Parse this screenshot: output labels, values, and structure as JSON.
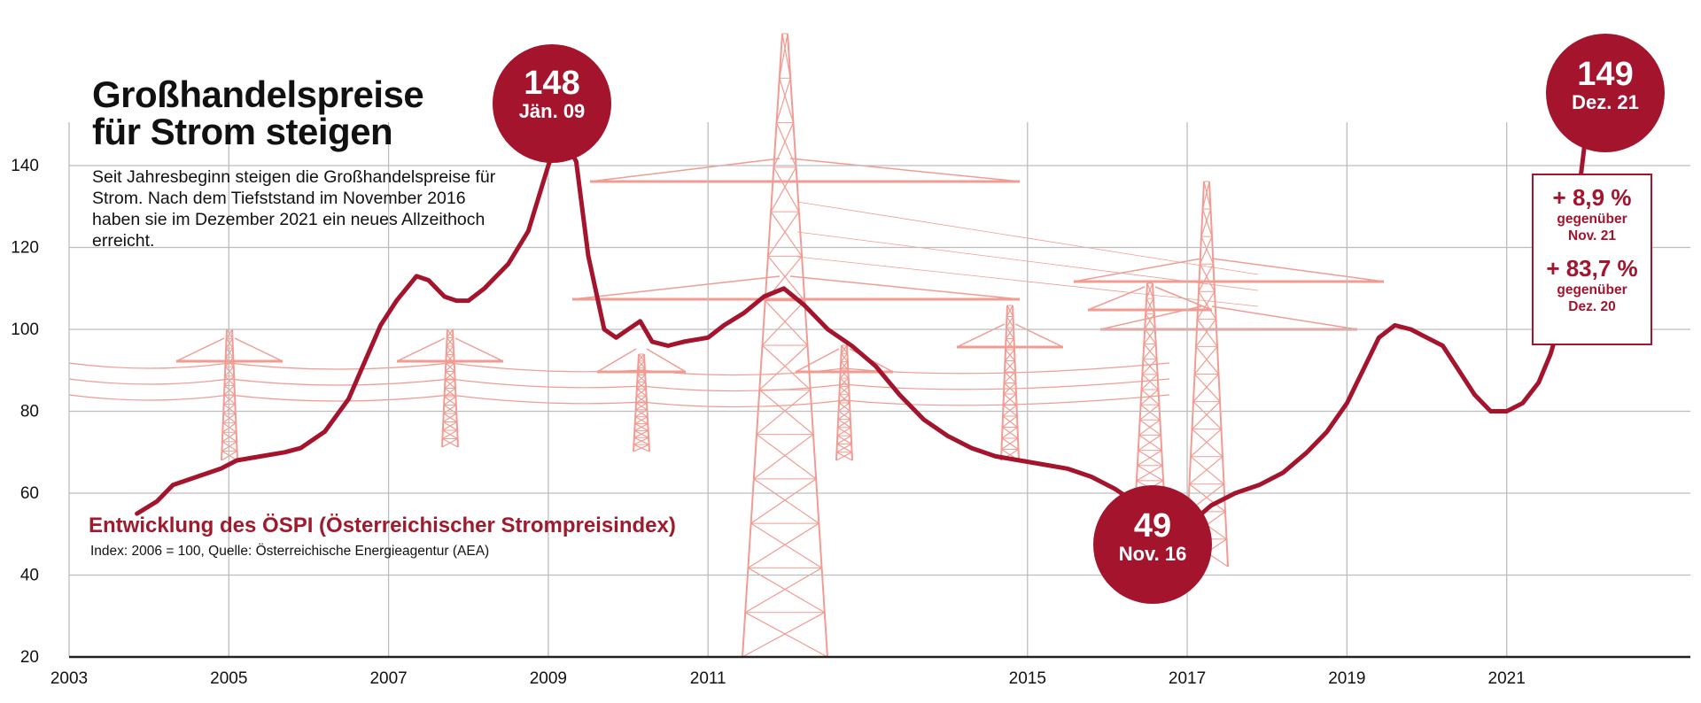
{
  "headline": "Großhandelspreise\nfür Strom steigen",
  "intro": "Seit Jahresbeginn steigen die Großhandelspreise für Strom. Nach dem Tiefststand im November 2016 haben sie im Dezember 2021 ein neues Allzeithoch erreicht.",
  "subtitle": "Entwicklung des ÖSPI (Österreichischer Strompreisindex)",
  "source": "Index: 2006 = 100, Quelle: Österreichische Energieagentur (AEA)",
  "annotations": {
    "high_2009": {
      "value": "148",
      "label": "Jän. 09"
    },
    "low_2016": {
      "value": "49",
      "label": "Nov. 16"
    },
    "high_2021": {
      "value": "149",
      "label": "Dez. 21"
    }
  },
  "changes": [
    {
      "pct": "+ 8,9 %",
      "line1": "gegenüber",
      "line2": "Nov. 21"
    },
    {
      "pct": "+ 83,7 %",
      "line1": "gegenüber",
      "line2": "Dez. 20"
    }
  ],
  "colors": {
    "line": "#a4142d",
    "pylon": "#f08a80",
    "grid": "#bdbdbd"
  },
  "chart_data": {
    "type": "line",
    "xlim": [
      2003,
      2023.3
    ],
    "ylim": [
      20,
      148
    ],
    "x_ticks": [
      "2003",
      "2005",
      "2007",
      "2009",
      "2011",
      "2015",
      "2017",
      "2019",
      "2021"
    ],
    "y_ticks": [
      "20",
      "40",
      "60",
      "80",
      "100",
      "120",
      "140"
    ],
    "grid": true,
    "series": [
      {
        "x": [
          2003.85,
          2004.1,
          2004.3,
          2004.6,
          2004.9,
          2005.1,
          2005.4,
          2005.7,
          2005.9,
          2006.2,
          2006.5,
          2006.7,
          2006.9,
          2007.1,
          2007.35,
          2007.5,
          2007.7,
          2007.85,
          2008.0,
          2008.2,
          2008.5,
          2008.75,
          2009.0,
          2009.15,
          2009.35,
          2009.5,
          2009.7,
          2009.85,
          2010.0,
          2010.15,
          2010.3,
          2010.5,
          2010.7,
          2011.0,
          2011.2,
          2011.45,
          2011.7,
          2011.95,
          2012.2,
          2012.5,
          2012.8,
          2013.1,
          2013.4,
          2013.7,
          2014.0,
          2014.3,
          2014.6,
          2014.9,
          2015.2,
          2015.5,
          2015.8,
          2016.1,
          2016.4,
          2016.7,
          2016.85,
          2017.0,
          2017.3,
          2017.6,
          2017.9,
          2018.2,
          2018.5,
          2018.75,
          2019.0,
          2019.2,
          2019.4,
          2019.6,
          2019.8,
          2020.0,
          2020.2,
          2020.4,
          2020.6,
          2020.8,
          2021.0,
          2021.2,
          2021.4,
          2021.55,
          2021.7,
          2021.85,
          2022.0
        ],
        "y": [
          55,
          58,
          62,
          64,
          66,
          68,
          69,
          70,
          71,
          75,
          83,
          92,
          101,
          107,
          113,
          112,
          108,
          107,
          107,
          110,
          116,
          124,
          140,
          148,
          141,
          118,
          100,
          98,
          100,
          102,
          97,
          96,
          97,
          98,
          101,
          104,
          108,
          110,
          106,
          100,
          96,
          91,
          84,
          78,
          74,
          71,
          69,
          68,
          67,
          66,
          64,
          61,
          57,
          52,
          49,
          52,
          57,
          60,
          62,
          65,
          70,
          75,
          82,
          90,
          98,
          101,
          100,
          98,
          96,
          90,
          84,
          80,
          80,
          82,
          87,
          94,
          104,
          125,
          149
        ]
      }
    ]
  }
}
